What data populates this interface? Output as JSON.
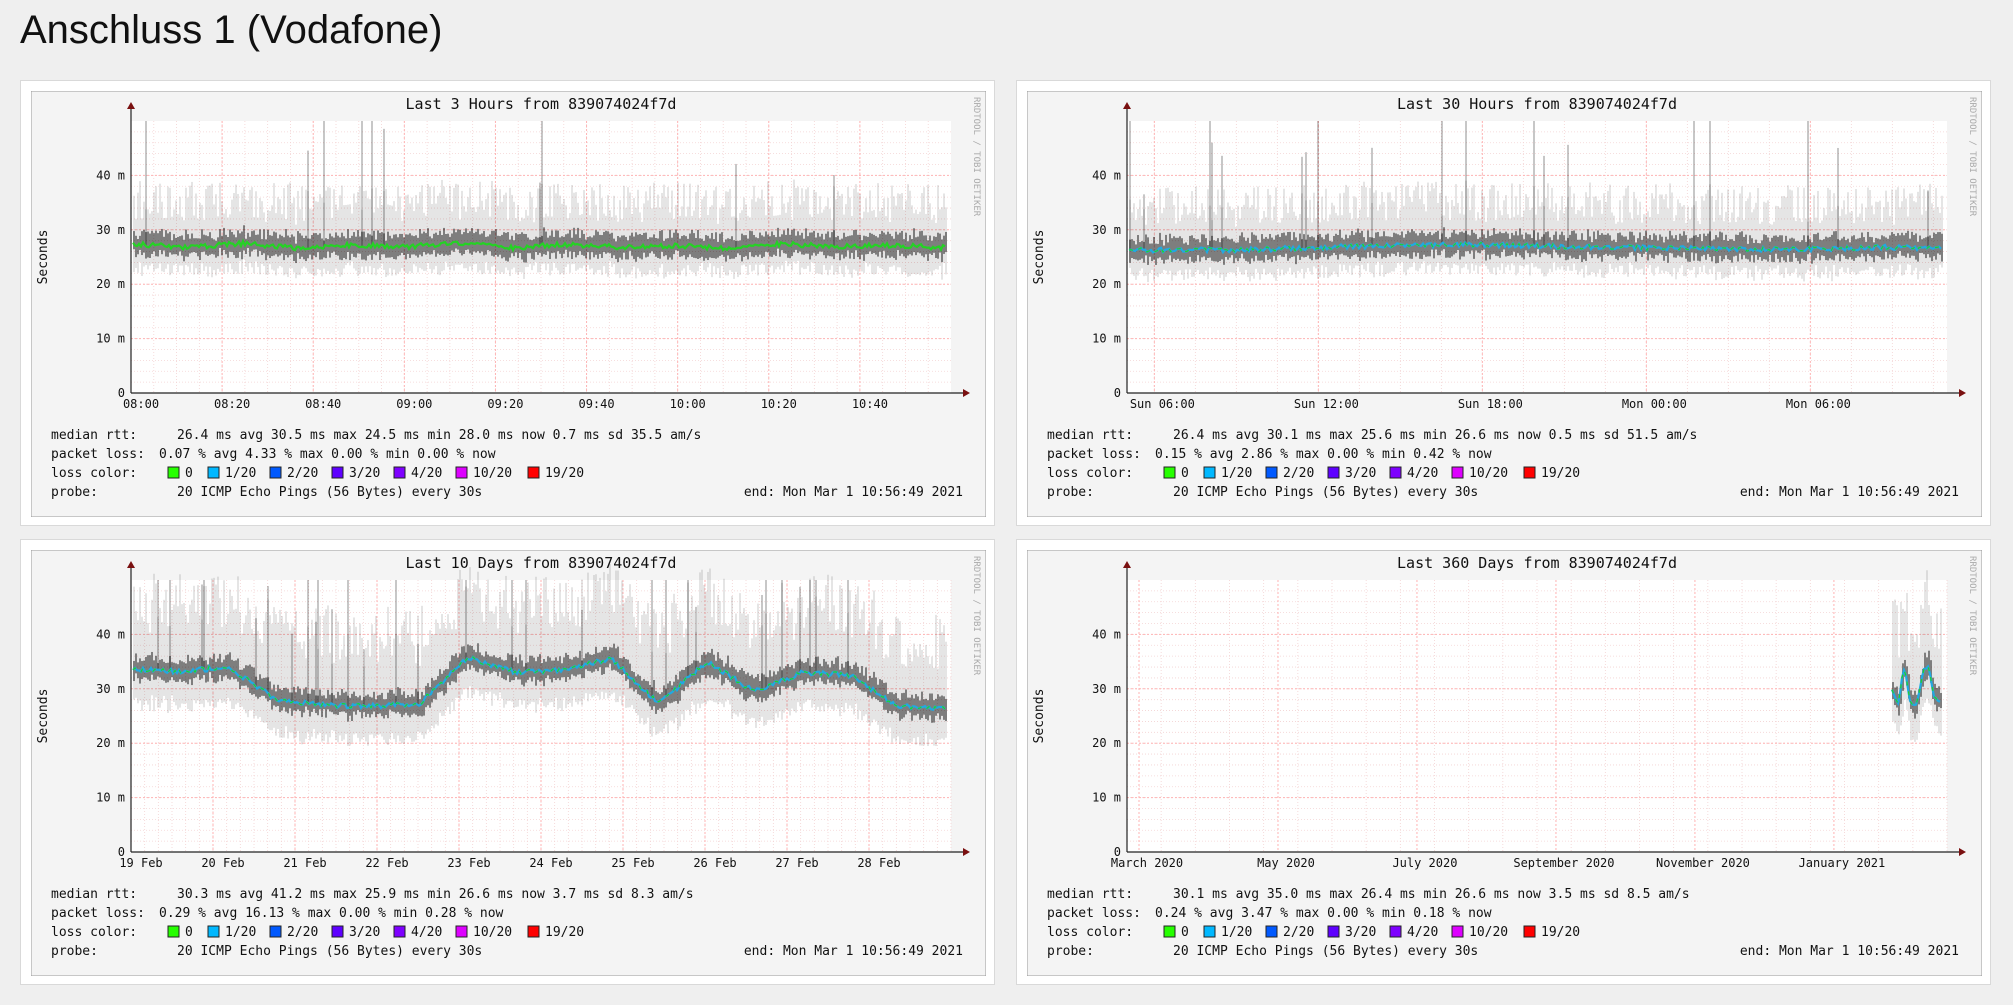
{
  "page": {
    "title": "Anschluss 1 (Vodafone)"
  },
  "colors": {
    "background": "#efefef",
    "panel": "#f4f4f4",
    "grid": "#ffb3b3",
    "axis": "#222222",
    "arrow": "#7a1010",
    "median_green": "#25d225",
    "median_blue": "#21a9e1",
    "smoke": "#000000"
  },
  "legend_labels": {
    "median": "median rtt:",
    "loss": "packet loss:",
    "loss_color": "loss color:",
    "probe": "probe:"
  },
  "loss_colors": [
    {
      "label": "0",
      "color": "#26ff00"
    },
    {
      "label": "1/20",
      "color": "#00b8ff"
    },
    {
      "label": "2/20",
      "color": "#0059ff"
    },
    {
      "label": "3/20",
      "color": "#5e00ff"
    },
    {
      "label": "4/20",
      "color": "#7e00ff"
    },
    {
      "label": "10/20",
      "color": "#dd00ff"
    },
    {
      "label": "19/20",
      "color": "#ff0000"
    }
  ],
  "watermark": "RRDTOOL / TOBI OETIKER",
  "chart_data": [
    {
      "type": "area",
      "title": "Last 3 Hours from 839074024f7d",
      "ylabel": "Seconds",
      "ylim": [
        0,
        50
      ],
      "yticks": [
        "0",
        "10 m",
        "20 m",
        "30 m",
        "40 m"
      ],
      "xlim": [
        0,
        180
      ],
      "xticks": [
        "08:00",
        "08:20",
        "08:40",
        "09:00",
        "09:20",
        "09:40",
        "10:00",
        "10:20",
        "10:40"
      ],
      "grid": true,
      "series": [
        {
          "median_ms": [
            27.4,
            26.8,
            27.5,
            26.6,
            27.2,
            26.9,
            27.6,
            26.7,
            27.3,
            26.8,
            27.1,
            26.6,
            27.4,
            26.9,
            27.2,
            26.7
          ]
        }
      ],
      "stats": {
        "median": "26.4 ms avg   30.5 ms max   24.5 ms min   28.0 ms now   0.7 ms sd   35.5    am/s",
        "loss": "0.07 % avg   4.33 % max   0.00 % min   0.00 % now"
      },
      "probe": "20 ICMP Echo Pings (56 Bytes) every 30s",
      "end": "end: Mon Mar  1 10:56:49 2021"
    },
    {
      "type": "area",
      "title": "Last 30 Hours from 839074024f7d",
      "ylabel": "Seconds",
      "ylim": [
        0,
        50
      ],
      "yticks": [
        "0",
        "10 m",
        "20 m",
        "30 m",
        "40 m"
      ],
      "xlim": [
        0,
        30
      ],
      "xticks": [
        "Sun 06:00",
        "Sun 12:00",
        "Sun 18:00",
        "Mon 00:00",
        "Mon 06:00"
      ],
      "grid": true,
      "series": [
        {
          "median_ms": [
            26.2,
            26.4,
            26.3,
            26.6,
            26.9,
            27.1,
            27.3,
            27.2,
            26.9,
            26.8,
            26.6,
            26.5,
            26.4,
            26.5,
            26.8,
            26.6
          ]
        }
      ],
      "stats": {
        "median": "26.4 ms avg   30.1 ms max   25.6 ms min   26.6 ms now   0.5 ms sd   51.5    am/s",
        "loss": "0.15 % avg   2.86 % max   0.00 % min   0.42 % now"
      },
      "probe": "20 ICMP Echo Pings (56 Bytes) every 30s",
      "end": "end: Mon Mar  1 10:56:49 2021"
    },
    {
      "type": "area",
      "title": "Last 10 Days from 839074024f7d",
      "ylabel": "Seconds",
      "ylim": [
        0,
        50
      ],
      "yticks": [
        "0",
        "10 m",
        "20 m",
        "30 m",
        "40 m"
      ],
      "xlim": [
        0,
        10
      ],
      "xticks": [
        "19 Feb",
        "20 Feb",
        "21 Feb",
        "22 Feb",
        "23 Feb",
        "24 Feb",
        "25 Feb",
        "26 Feb",
        "27 Feb",
        "28 Feb"
      ],
      "grid": true,
      "series": [
        {
          "median_ms": [
            33.5,
            33.2,
            34.0,
            28.0,
            27.0,
            26.8,
            27.3,
            35.8,
            33.0,
            33.4,
            35.6,
            27.2,
            35.0,
            29.5,
            33.0,
            32.5,
            26.8,
            26.3
          ]
        }
      ],
      "stats": {
        "median": "30.3 ms avg   41.2 ms max   25.9 ms min   26.6 ms now   3.7 ms sd   8.3    am/s",
        "loss": "0.29 % avg   16.13 % max   0.00 % min   0.28 % now"
      },
      "probe": "20 ICMP Echo Pings (56 Bytes) every 30s",
      "end": "end: Mon Mar  1 10:56:49 2021"
    },
    {
      "type": "area",
      "title": "Last 360 Days from 839074024f7d",
      "ylabel": "Seconds",
      "ylim": [
        0,
        50
      ],
      "yticks": [
        "0",
        "10 m",
        "20 m",
        "30 m",
        "40 m"
      ],
      "xlim": [
        0,
        360
      ],
      "xticks": [
        "March 2020",
        "May 2020",
        "July 2020",
        "September 2020",
        "November 2020",
        "January 2021"
      ],
      "grid": true,
      "series": [
        {
          "median_ms": [
            30.0,
            27.5,
            34.0,
            27.0,
            27.0,
            33.0,
            34.0,
            28.0,
            27.5
          ]
        }
      ],
      "stats": {
        "median": "30.1 ms avg   35.0 ms max   26.4 ms min   26.6 ms now   3.5 ms sd   8.5    am/s",
        "loss": "0.24 % avg   3.47 % max   0.00 % min   0.18 % now"
      },
      "probe": "20 ICMP Echo Pings (56 Bytes) every 30s",
      "end": "end: Mon Mar  1 10:56:49 2021"
    }
  ]
}
